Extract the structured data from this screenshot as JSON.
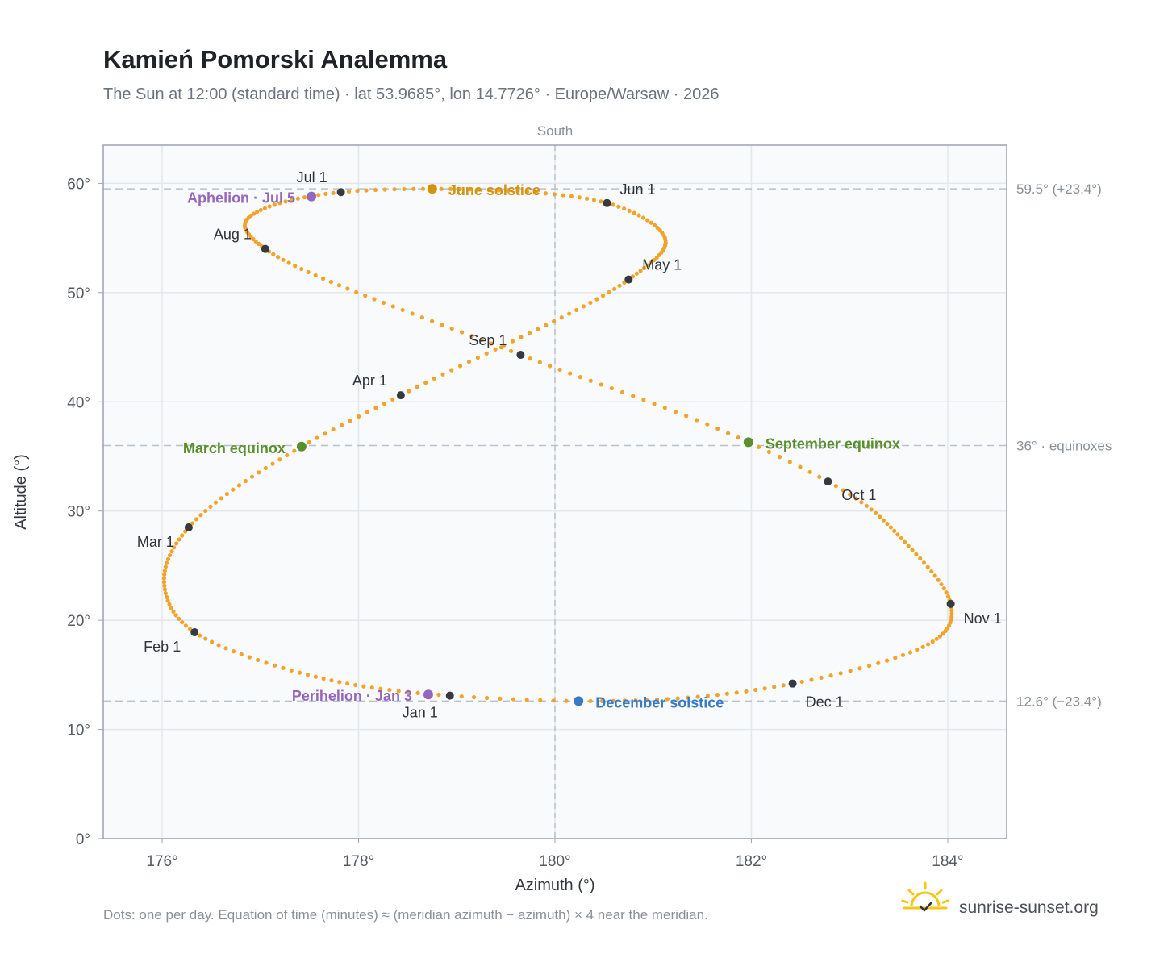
{
  "header": {
    "title": "Kamień Pomorski Analemma",
    "subtitle": "The Sun at 12:00 (standard time) · lat 53.9685°, lon 14.7726° · Europe/Warsaw · 2026"
  },
  "footer": {
    "note": "Dots: one per day. Equation of time (minutes) ≈ (meridian azimuth − azimuth) × 4 near the meridian.",
    "brand": "sunrise-sunset.org"
  },
  "colors": {
    "curve": "#f2a32c",
    "month_marker": "#343a40",
    "june_solstice": "#d4920f",
    "december_solstice": "#3a7bc8",
    "equinox": "#5a8f2e",
    "apsis": "#9467bd",
    "plot_bg": "#f8fafc",
    "frame": "#9aa3ae",
    "grid": "#e3e8ee",
    "ref_line": "#b6c2cc"
  },
  "chart_data": {
    "type": "scatter",
    "title": "Kamień Pomorski Analemma",
    "xlabel": "Azimuth (°)",
    "ylabel": "Altitude (°)",
    "xlim": [
      175.4,
      184.6
    ],
    "ylim": [
      0,
      63.5
    ],
    "xticks": [
      176,
      178,
      180,
      182,
      184
    ],
    "xtick_labels": [
      "176°",
      "178°",
      "180°",
      "182°",
      "184°"
    ],
    "yticks": [
      0,
      10,
      20,
      30,
      40,
      50,
      60
    ],
    "ytick_labels": [
      "0°",
      "10°",
      "20°",
      "30°",
      "40°",
      "50°",
      "60°"
    ],
    "grid": true,
    "meridian": {
      "x": 180,
      "label": "South"
    },
    "reference_lines": [
      {
        "y": 59.5,
        "label": "59.5° (+23.4°)"
      },
      {
        "y": 36.0,
        "label": "36° · equinoxes"
      },
      {
        "y": 12.6,
        "label": "12.6° (−23.4°)"
      }
    ],
    "series": [
      {
        "name": "Dots: one per day",
        "points_per_year": 365,
        "anchors": [
          {
            "day": 0,
            "az": 178.93,
            "alt": 13.1
          },
          {
            "day": 31,
            "az": 176.33,
            "alt": 18.9
          },
          {
            "day": 59,
            "az": 176.27,
            "alt": 28.5
          },
          {
            "day": 78,
            "az": 177.42,
            "alt": 35.9
          },
          {
            "day": 90,
            "az": 178.43,
            "alt": 40.6
          },
          {
            "day": 120,
            "az": 180.75,
            "alt": 51.2
          },
          {
            "day": 151,
            "az": 180.53,
            "alt": 58.2
          },
          {
            "day": 171,
            "az": 178.75,
            "alt": 59.5
          },
          {
            "day": 181,
            "az": 177.82,
            "alt": 59.2
          },
          {
            "day": 212,
            "az": 177.05,
            "alt": 54.0
          },
          {
            "day": 243,
            "az": 179.65,
            "alt": 44.3
          },
          {
            "day": 265,
            "az": 181.97,
            "alt": 36.3
          },
          {
            "day": 273,
            "az": 182.78,
            "alt": 32.7
          },
          {
            "day": 304,
            "az": 184.03,
            "alt": 21.5
          },
          {
            "day": 334,
            "az": 182.42,
            "alt": 14.2
          },
          {
            "day": 355,
            "az": 180.24,
            "alt": 12.6
          }
        ],
        "loop_extremes": [
          {
            "day": 17,
            "az": 177.4,
            "alt": 15.2
          },
          {
            "day": 45,
            "az": 176.02,
            "alt": 23.5
          },
          {
            "day": 136,
            "az": 181.12,
            "alt": 55.0
          },
          {
            "day": 200,
            "az": 176.85,
            "alt": 56.5
          },
          {
            "day": 290,
            "az": 183.6,
            "alt": 26.8
          },
          {
            "day": 318,
            "az": 183.8,
            "alt": 17.8
          }
        ]
      }
    ],
    "month_markers": [
      {
        "label": "Jan 1",
        "az": 178.93,
        "alt": 13.1
      },
      {
        "label": "Feb 1",
        "az": 176.33,
        "alt": 18.9
      },
      {
        "label": "Mar 1",
        "az": 176.27,
        "alt": 28.5
      },
      {
        "label": "Apr 1",
        "az": 178.43,
        "alt": 40.6
      },
      {
        "label": "May 1",
        "az": 180.75,
        "alt": 51.2
      },
      {
        "label": "Jun 1",
        "az": 180.53,
        "alt": 58.2
      },
      {
        "label": "Jul 1",
        "az": 177.82,
        "alt": 59.2
      },
      {
        "label": "Aug 1",
        "az": 177.05,
        "alt": 54.0
      },
      {
        "label": "Sep 1",
        "az": 179.65,
        "alt": 44.3
      },
      {
        "label": "Oct 1",
        "az": 182.78,
        "alt": 32.7
      },
      {
        "label": "Nov 1",
        "az": 184.03,
        "alt": 21.5
      },
      {
        "label": "Dec 1",
        "az": 182.42,
        "alt": 14.2
      }
    ],
    "events": [
      {
        "label": "June solstice",
        "az": 178.75,
        "alt": 59.5,
        "color_key": "june_solstice"
      },
      {
        "label": "December solstice",
        "az": 180.24,
        "alt": 12.6,
        "color_key": "december_solstice"
      },
      {
        "label": "March equinox",
        "az": 177.42,
        "alt": 35.9,
        "color_key": "equinox"
      },
      {
        "label": "September equinox",
        "az": 181.97,
        "alt": 36.3,
        "color_key": "equinox"
      },
      {
        "label": "Aphelion · Jul 5",
        "az": 177.52,
        "alt": 58.8,
        "color_key": "apsis"
      },
      {
        "label": "Perihelion · Jan 3",
        "az": 178.71,
        "alt": 13.2,
        "color_key": "apsis"
      }
    ]
  }
}
